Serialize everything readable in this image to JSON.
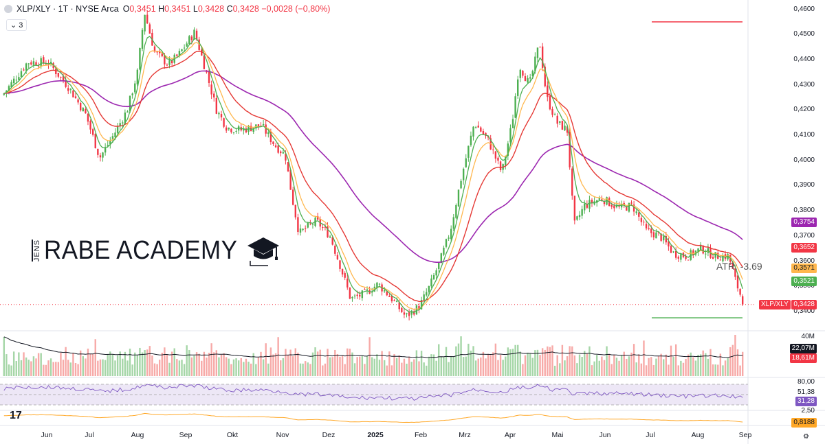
{
  "header": {
    "symbol": "XLP/XLY · 1T · NYSE Arca",
    "open_label": "O",
    "open": "0,3451",
    "high_label": "H",
    "high": "0,3451",
    "low_label": "L",
    "low": "0,3428",
    "close_label": "C",
    "close": "0,3428",
    "change": "−0,0028 (−0,80%)"
  },
  "indicator_count": "3",
  "brand": {
    "vertical": "JENS",
    "name": "RABE ACADEMY"
  },
  "atr_label": "ATR: -3.69",
  "symbol_tag": "XLP/XLY",
  "tv_logo": "17",
  "colors": {
    "up": "#4caf50",
    "down": "#f23645",
    "ema5": "#4caf50",
    "ema10": "#ffb74d",
    "ema20": "#e53935",
    "ema50": "#9c27b0",
    "resistance": "#f23645",
    "support": "#4caf50",
    "rsi": "#7e57c2",
    "osc": "#ffa726",
    "vol_ma": "#131722"
  },
  "price_axis": {
    "ticks": [
      "0,4600",
      "0,4500",
      "0,4400",
      "0,4300",
      "0,4200",
      "0,4100",
      "0,4000",
      "0,3900",
      "0,3800",
      "0,3700",
      "0,3600",
      "0,3500",
      "0,3400"
    ],
    "labels": [
      {
        "text": "0,3754",
        "bg": "#9c27b0",
        "fg": "#ffffff",
        "value": 0.3754
      },
      {
        "text": "0,3652",
        "bg": "#f23645",
        "fg": "#ffffff",
        "value": 0.3652
      },
      {
        "text": "0,3571",
        "bg": "#ffb74d",
        "fg": "#131722",
        "value": 0.3571
      },
      {
        "text": "0,3521",
        "bg": "#4caf50",
        "fg": "#ffffff",
        "value": 0.3521
      },
      {
        "text": "0,3428",
        "bg": "#f23645",
        "fg": "#ffffff",
        "value": 0.3428
      }
    ]
  },
  "volume_axis": {
    "top": "40M",
    "labels": [
      {
        "text": "22,07M",
        "bg": "#131722",
        "fg": "#ffffff"
      },
      {
        "text": "18,61M",
        "bg": "#f23645",
        "fg": "#ffffff"
      }
    ]
  },
  "rsi_axis": {
    "top": "80,00",
    "labels": [
      {
        "text": "51,38",
        "bg": "#ffffff",
        "fg": "#131722"
      },
      {
        "text": "31,28",
        "bg": "#7e57c2",
        "fg": "#ffffff"
      }
    ]
  },
  "osc_axis": {
    "top": "2,50",
    "labels": [
      {
        "text": "0,8188",
        "bg": "#ffa726",
        "fg": "#131722"
      }
    ]
  },
  "x_axis": [
    "Jun",
    "Jul",
    "Aug",
    "Sep",
    "Okt",
    "Nov",
    "Dez",
    "2025",
    "Feb",
    "Mrz",
    "Apr",
    "Mai",
    "Jun",
    "Jul",
    "Aug",
    "Sep"
  ],
  "chart_data": {
    "type": "candlestick",
    "y_unit": "ratio",
    "ylim": [
      0.334,
      0.4615
    ],
    "x_labels": [
      "Jun",
      "Jul",
      "Aug",
      "Sep",
      "Okt",
      "Nov",
      "Dez",
      "2025",
      "Feb",
      "Mrz",
      "Apr",
      "Mai",
      "Jun",
      "Jul",
      "Aug",
      "Sep"
    ],
    "close_path_monthly": [
      {
        "x": "Jun",
        "close": 0.429
      },
      {
        "x": "Jul",
        "close": 0.408
      },
      {
        "x": "Aug",
        "close": 0.443
      },
      {
        "x": "Sep",
        "close": 0.439
      },
      {
        "x": "Okt",
        "close": 0.413
      },
      {
        "x": "Nov",
        "close": 0.372
      },
      {
        "x": "Dez",
        "close": 0.344
      },
      {
        "x": "2025",
        "close": 0.346
      },
      {
        "x": "Feb",
        "close": 0.347
      },
      {
        "x": "Mrz",
        "close": 0.405
      },
      {
        "x": "Apr",
        "close": 0.436
      },
      {
        "x": "Mai",
        "close": 0.402
      },
      {
        "x": "Jun",
        "close": 0.387
      },
      {
        "x": "Jul",
        "close": 0.368
      },
      {
        "x": "Aug",
        "close": 0.362
      },
      {
        "x": "Sep",
        "close": 0.3428
      }
    ],
    "horizontal_lines": [
      {
        "name": "resistance",
        "value": 0.455
      },
      {
        "name": "support",
        "value": 0.3375
      }
    ],
    "last": {
      "ema50": 0.3754,
      "ema20": 0.3652,
      "ema10": 0.3571,
      "ema5": 0.3521,
      "close": 0.3428
    },
    "volume": {
      "top": "40M",
      "ma": "22,07M",
      "last": "18,61M"
    },
    "rsi": {
      "top": 80.0,
      "ma": 51.38,
      "last": 31.28
    },
    "oscillator": {
      "top": 2.5,
      "last": 0.8188
    }
  }
}
